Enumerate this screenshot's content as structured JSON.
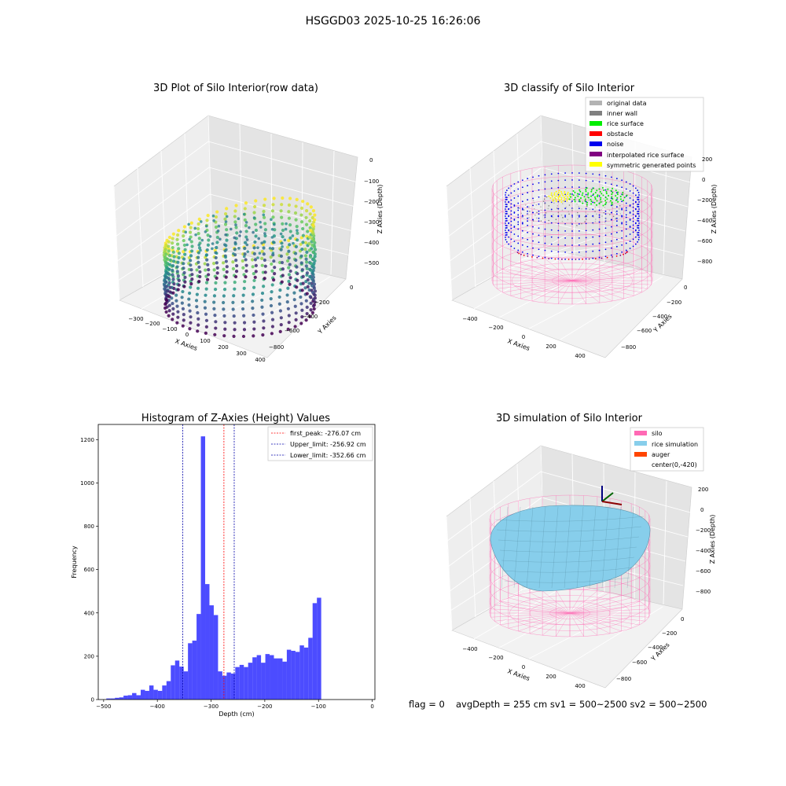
{
  "suptitle": "HSGGD03 2025-10-25 16:26:06",
  "panels": {
    "raw": {
      "title": "3D Plot of Silo Interior(row data)",
      "xlabel": "X Axies",
      "ylabel": "Y Axies",
      "zlabel": "Z Axies (Depth)",
      "xticks": [
        "−300",
        "−200",
        "−100",
        "0",
        "100",
        "200",
        "300",
        "400"
      ],
      "yticks": [
        "0",
        "−200",
        "−400",
        "−600",
        "−800"
      ],
      "zticks": [
        "0",
        "−100",
        "−200",
        "−300",
        "−400",
        "−500"
      ]
    },
    "classify": {
      "title": "3D classify of Silo Interior",
      "xlabel": "X Axies",
      "ylabel": "Y Axies",
      "zlabel": "Z Axies (Depth)",
      "xticks": [
        "−400",
        "−200",
        "0",
        "200",
        "400"
      ],
      "yticks": [
        "0",
        "−200",
        "−400",
        "−600",
        "−800"
      ],
      "zticks": [
        "200",
        "0",
        "−200",
        "−400",
        "−600",
        "−800"
      ],
      "legend": [
        {
          "label": "original data",
          "color": "#b3b3b3"
        },
        {
          "label": "inner wall",
          "color": "#808080"
        },
        {
          "label": "rice surface",
          "color": "#00ee00"
        },
        {
          "label": "obstacle",
          "color": "#ff0000"
        },
        {
          "label": "noise",
          "color": "#0000ee"
        },
        {
          "label": "interpolated rice surface",
          "color": "#800080"
        },
        {
          "label": "symmetric generated points",
          "color": "#ffff00"
        }
      ]
    },
    "simulation": {
      "title": "3D simulation of Silo Interior",
      "xlabel": "X Axies",
      "ylabel": "Y Axies",
      "zlabel": "Z Axies (Depth)",
      "xticks": [
        "−400",
        "−200",
        "0",
        "200",
        "400"
      ],
      "yticks": [
        "0",
        "−200",
        "−400",
        "−600",
        "−800"
      ],
      "zticks": [
        "200",
        "0",
        "−200",
        "−400",
        "−600",
        "−800"
      ],
      "legend": [
        {
          "label": "silo",
          "color": "#ff69b4"
        },
        {
          "label": "rice simulation",
          "color": "#87ceeb"
        },
        {
          "label": "auger",
          "color": "#ff4500"
        },
        {
          "label": "center(0,-420)",
          "color": ""
        }
      ]
    }
  },
  "chart_data": {
    "type": "bar",
    "title": "Histogram of Z-Axies (Height) Values",
    "xlabel": "Depth (cm)",
    "ylabel": "Frequency",
    "xlim": [
      -510,
      5
    ],
    "ylim": [
      0,
      1270
    ],
    "xticks": [
      -500,
      -400,
      -300,
      -200,
      -100,
      0
    ],
    "yticks": [
      0,
      200,
      400,
      600,
      800,
      1000,
      1200
    ],
    "bin_width": 8,
    "bin_starts": [
      -495,
      -487,
      -479,
      -471,
      -463,
      -455,
      -447,
      -439,
      -431,
      -423,
      -415,
      -407,
      -399,
      -391,
      -383,
      -375,
      -367,
      -359,
      -351,
      -343,
      -335,
      -327,
      -319,
      -311,
      -303,
      -295,
      -287,
      -279,
      -271,
      -263,
      -255,
      -247,
      -239,
      -231,
      -223,
      -215,
      -207,
      -199,
      -191,
      -183,
      -175,
      -167,
      -159,
      -151,
      -143,
      -135,
      -127,
      -119,
      -111,
      -103,
      -95,
      -87,
      -79,
      -71,
      -63,
      -55,
      -47,
      -39,
      -31,
      -23,
      -15
    ],
    "values": [
      5,
      5,
      8,
      10,
      18,
      20,
      30,
      20,
      45,
      40,
      65,
      45,
      40,
      65,
      85,
      158,
      180,
      152,
      130,
      260,
      272,
      395,
      1215,
      533,
      435,
      390,
      130,
      110,
      125,
      120,
      150,
      160,
      150,
      170,
      195,
      205,
      170,
      210,
      205,
      190,
      190,
      175,
      230,
      225,
      220,
      250,
      240,
      285,
      445,
      470,
      0,
      0,
      0,
      0,
      0,
      0,
      0,
      0,
      0,
      0,
      0
    ],
    "series_color": "#0000ff",
    "vlines": [
      {
        "label": "first_peak: -276.07 cm",
        "x": -276.07,
        "color": "#ff0000"
      },
      {
        "label": "Upper_limit: -256.92 cm",
        "x": -256.92,
        "color": "#0000aa"
      },
      {
        "label": "Lower_limit: -352.66 cm",
        "x": -352.66,
        "color": "#0000aa"
      }
    ],
    "legend_position": "top-right"
  },
  "footer": {
    "flag": "flag = 0",
    "stats": "avgDepth = 255 cm  sv1 = 500~2500  sv2 = 500~2500"
  }
}
